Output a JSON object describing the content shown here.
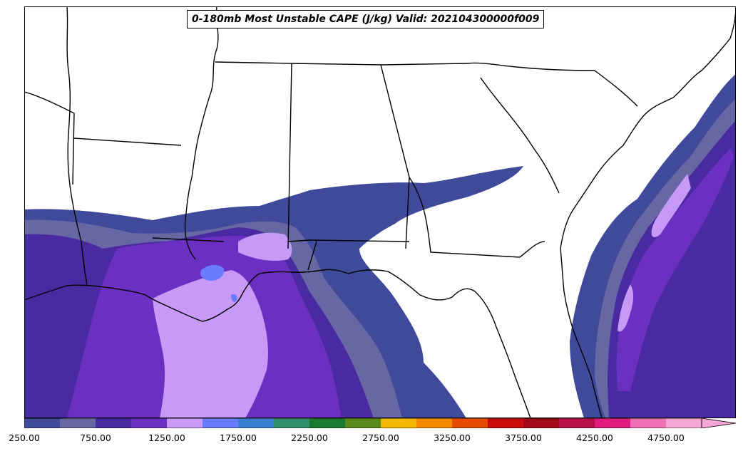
{
  "title": "0-180mb Most Unstable CAPE (J/kg) Valid: 202104300000f009",
  "colorbar": {
    "levels": [
      250,
      500,
      750,
      1000,
      1250,
      1500,
      1750,
      2000,
      2250,
      2500,
      2750,
      3000,
      3250,
      3500,
      3750,
      4000,
      4250,
      4500,
      4750
    ],
    "colors": [
      "#3f4a9b",
      "#6667a3",
      "#4a2aa0",
      "#6b2fc2",
      "#c79af7",
      "#6a7cff",
      "#3a80d0",
      "#2e8f6a",
      "#1a7a2e",
      "#5a8a1a",
      "#f3b800",
      "#f58a00",
      "#e84a00",
      "#cc0b0b",
      "#a30a18",
      "#b80f4a",
      "#e01a7e",
      "#f070b6",
      "#f7a7d6"
    ],
    "extend": "max",
    "tick_labels": [
      "250.00",
      "750.00",
      "1250.00",
      "1750.00",
      "2250.00",
      "2750.00",
      "3250.00",
      "3750.00",
      "4250.00",
      "4750.00"
    ]
  },
  "map": {
    "projection": "regional",
    "region": "Southeastern United States and Gulf of Mexico",
    "field": "Most Unstable CAPE",
    "units": "J/kg",
    "colors": {
      "c250": "#3f4a9b",
      "c500": "#6667a3",
      "c750": "#4a2aa0",
      "c1000": "#6b2fc2",
      "c1250": "#c79af7",
      "c1500": "#6a7cff",
      "background": "#ffffff",
      "boundary": "#000000"
    }
  }
}
